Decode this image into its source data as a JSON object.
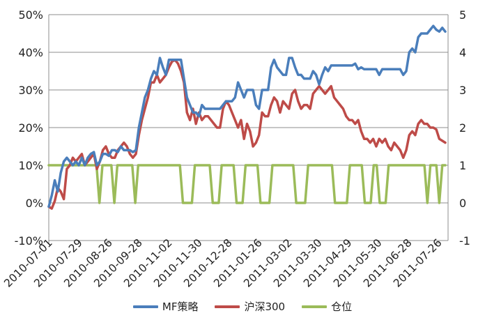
{
  "chart_data": {
    "type": "line",
    "x_axis_labels": [
      "2010-07-01",
      "2010-07-29",
      "2010-08-26",
      "2010-09-28",
      "2010-11-02",
      "2010-11-30",
      "2010-12-28",
      "2011-01-26",
      "2011-03-02",
      "2011-03-30",
      "2011-04-29",
      "2011-05-30",
      "2011-06-28",
      "2011-07-26"
    ],
    "y_left": {
      "min": -10,
      "max": 50,
      "ticks": [
        "-10%",
        "0%",
        "10%",
        "20%",
        "30%",
        "40%",
        "50%"
      ]
    },
    "y_right": {
      "min": -1,
      "max": 5,
      "ticks": [
        "-1",
        "0",
        "1",
        "2",
        "3",
        "4",
        "5"
      ]
    },
    "grid": "horizontal",
    "legend_position": "bottom",
    "series": [
      {
        "name": "MF策略",
        "axis": "left",
        "color": "#4a7ebb",
        "values": [
          -1.0,
          2.0,
          6.0,
          3.0,
          8.0,
          11.0,
          12.0,
          11.0,
          10.0,
          11.0,
          10.0,
          12.0,
          10.0,
          12.0,
          13.0,
          13.5,
          10.0,
          11.0,
          13.0,
          13.0,
          12.5,
          14.0,
          14.0,
          13.5,
          15.0,
          14.0,
          14.0,
          14.0,
          13.5,
          14.0,
          20.0,
          24.0,
          28.0,
          30.0,
          33.0,
          35.0,
          34.0,
          38.5,
          36.0,
          34.0,
          38.0,
          38.0,
          38.0,
          38.0,
          38.0,
          33.0,
          28.0,
          26.0,
          24.0,
          24.0,
          23.0,
          26.0,
          25.0,
          25.0,
          25.0,
          25.0,
          25.0,
          25.0,
          26.0,
          27.0,
          27.0,
          27.0,
          28.0,
          32.0,
          30.0,
          28.0,
          30.0,
          30.0,
          30.0,
          26.0,
          25.0,
          30.0,
          30.0,
          30.0,
          36.0,
          38.0,
          36.0,
          35.0,
          34.0,
          34.0,
          38.5,
          38.5,
          36.0,
          34.0,
          34.0,
          33.0,
          33.0,
          33.0,
          35.0,
          34.0,
          31.5,
          34.0,
          36.0,
          35.0,
          36.5,
          36.5,
          36.5,
          36.5,
          36.5,
          36.5,
          36.5,
          36.5,
          37.0,
          35.5,
          36.0,
          35.5,
          35.5,
          35.5,
          35.5,
          35.5,
          34.0,
          35.5,
          35.5,
          35.5,
          35.5,
          35.5,
          35.5,
          35.5,
          34.0,
          35.0,
          40.0,
          41.0,
          40.0,
          44.0,
          45.0,
          45.0,
          45.0,
          46.0,
          47.0,
          46.0,
          45.5,
          46.5,
          45.5
        ]
      },
      {
        "name": "沪深300",
        "axis": "left",
        "color": "#be4b48",
        "values": [
          -1.0,
          -1.5,
          0.5,
          4.0,
          3.0,
          1.0,
          9.0,
          10.0,
          12.0,
          11.0,
          12.0,
          13.0,
          10.0,
          11.0,
          12.0,
          13.0,
          9.0,
          11.0,
          14.0,
          15.0,
          13.0,
          12.0,
          12.0,
          14.0,
          15.0,
          16.0,
          15.0,
          13.0,
          12.0,
          13.0,
          18.0,
          22.0,
          25.0,
          28.0,
          32.0,
          32.0,
          34.0,
          32.0,
          33.0,
          34.0,
          36.0,
          37.5,
          38.0,
          37.0,
          35.0,
          32.0,
          24.0,
          22.0,
          25.0,
          21.0,
          24.0,
          22.0,
          23.0,
          23.0,
          22.0,
          21.0,
          20.0,
          20.0,
          25.0,
          27.0,
          26.0,
          24.0,
          22.0,
          20.0,
          22.0,
          17.0,
          21.0,
          19.0,
          15.0,
          16.0,
          18.0,
          24.0,
          23.0,
          23.0,
          26.0,
          28.0,
          27.0,
          24.0,
          27.0,
          26.0,
          25.0,
          29.0,
          30.0,
          27.0,
          25.0,
          26.0,
          26.0,
          25.0,
          29.0,
          30.0,
          31.0,
          30.0,
          29.0,
          30.0,
          31.0,
          28.0,
          27.0,
          26.0,
          25.0,
          23.0,
          22.0,
          22.0,
          21.0,
          22.0,
          19.0,
          17.0,
          17.0,
          16.0,
          17.0,
          15.0,
          17.0,
          16.0,
          17.0,
          15.0,
          14.0,
          16.0,
          15.0,
          14.0,
          12.0,
          14.0,
          18.0,
          19.0,
          18.0,
          21.0,
          22.0,
          21.0,
          21.0,
          20.0,
          20.0,
          19.5,
          17.0,
          16.5,
          16.0
        ]
      },
      {
        "name": "仓位",
        "axis": "right",
        "color": "#9bbb59",
        "values": [
          1,
          1,
          1,
          1,
          1,
          1,
          1,
          1,
          1,
          1,
          1,
          1,
          1,
          1,
          1,
          1,
          1,
          0,
          1,
          1,
          1,
          1,
          0,
          1,
          1,
          1,
          1,
          1,
          1,
          0,
          1,
          1,
          1,
          1,
          1,
          1,
          1,
          1,
          1,
          1,
          1,
          1,
          1,
          1,
          1,
          0,
          0,
          0,
          0,
          1,
          1,
          1,
          1,
          1,
          1,
          0,
          0,
          0,
          1,
          1,
          1,
          1,
          1,
          0,
          0,
          0,
          1,
          1,
          1,
          1,
          1,
          0,
          0,
          0,
          0,
          1,
          1,
          1,
          1,
          1,
          1,
          1,
          1,
          0,
          0,
          0,
          0,
          1,
          1,
          1,
          1,
          1,
          1,
          1,
          1,
          1,
          0,
          0,
          0,
          0,
          0,
          1,
          1,
          1,
          1,
          1,
          0,
          0,
          0,
          1,
          1,
          0,
          0,
          0,
          1,
          1,
          1,
          1,
          1,
          1,
          1,
          1,
          1,
          1,
          1,
          1,
          1,
          0,
          1,
          1,
          1,
          0,
          1,
          1
        ]
      }
    ]
  }
}
